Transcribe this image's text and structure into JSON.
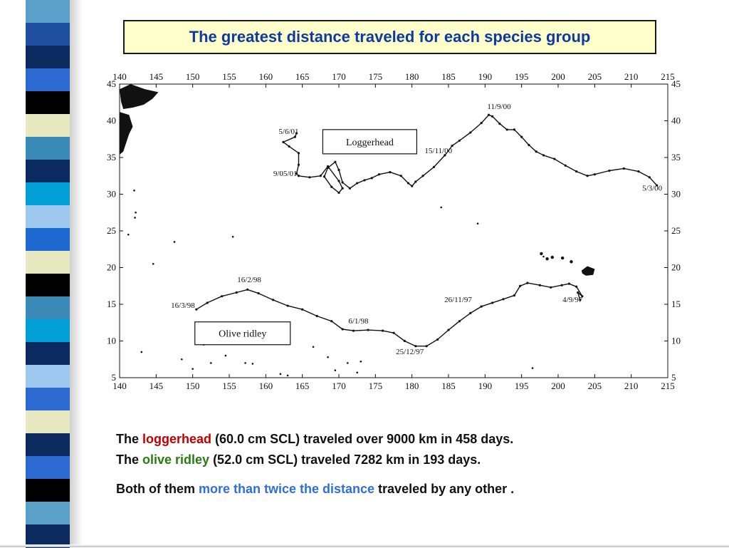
{
  "slide": {
    "title": "The greatest distance traveled for each species group",
    "stripes": [
      "#5aa0c8",
      "#1e4fa0",
      "#0a2a60",
      "#2c6ad2",
      "#000000",
      "#e8e8c0",
      "#3a8ab8",
      "#0a2a60",
      "#00a0d6",
      "#9ec8f0",
      "#1e6ad2",
      "#e8e8c0",
      "#000000",
      "#3a8ab8",
      "#00a0d6",
      "#0a2a60",
      "#9ec8f0",
      "#2c6ad2",
      "#e8e8c0",
      "#0a2a60",
      "#2c6ad2",
      "#000000",
      "#5aa0c8",
      "#0a2a60"
    ],
    "caption": {
      "line1": {
        "before": "The ",
        "highlight": "loggerhead",
        "after": " (60.0 cm SCL) traveled over 9000 km in 458 days."
      },
      "line2": {
        "before": "The ",
        "highlight": "olive ridley",
        "after": " (52.0 cm SCL) traveled 7282 km in 193 days."
      },
      "line3": {
        "before": "Both of them ",
        "highlight": "more than twice the distance",
        "after": " traveled by any other ."
      }
    },
    "colors": {
      "title_text": "#0d3aa0",
      "title_box": "#ffffcc",
      "loggerhead": "#c00000",
      "olive_ridley": "#2a7a12",
      "emphasis": "#2f6fd6"
    }
  },
  "chart_data": {
    "type": "line",
    "xlim": [
      140,
      215
    ],
    "ylim": [
      5,
      45
    ],
    "x_ticks": [
      140,
      145,
      150,
      155,
      160,
      165,
      170,
      175,
      180,
      185,
      190,
      195,
      200,
      205,
      210,
      215
    ],
    "y_ticks": [
      5,
      10,
      15,
      20,
      25,
      30,
      35,
      40,
      45
    ],
    "series": [
      {
        "name": "Loggerhead",
        "color": "#111111",
        "points": [
          [
            213.5,
            31.2
          ],
          [
            212.5,
            32.3
          ],
          [
            211,
            33.1
          ],
          [
            209,
            33.5
          ],
          [
            207,
            33.2
          ],
          [
            205,
            32.7
          ],
          [
            204,
            32.5
          ],
          [
            202.5,
            33.1
          ],
          [
            201,
            33.9
          ],
          [
            199.5,
            34.8
          ],
          [
            198,
            35.3
          ],
          [
            197,
            35.8
          ],
          [
            196,
            36.7
          ],
          [
            195,
            37.8
          ],
          [
            194,
            38.8
          ],
          [
            193,
            38.8
          ],
          [
            192,
            39.6
          ],
          [
            191,
            40.6
          ],
          [
            190.5,
            40.8
          ],
          [
            189.5,
            39.7
          ],
          [
            188,
            38.4
          ],
          [
            186.5,
            37.3
          ],
          [
            185.5,
            36.6
          ],
          [
            184.5,
            35.3
          ],
          [
            183,
            33.7
          ],
          [
            181.5,
            32.5
          ],
          [
            180.5,
            31.7
          ],
          [
            180,
            31.1
          ],
          [
            179.5,
            31.5
          ],
          [
            178.5,
            32.5
          ],
          [
            177,
            33.0
          ],
          [
            175.5,
            32.7
          ],
          [
            174.5,
            32.2
          ],
          [
            173.5,
            31.9
          ],
          [
            172.5,
            31.5
          ],
          [
            171.5,
            30.8
          ],
          [
            170.5,
            31.6
          ],
          [
            170,
            33.3
          ],
          [
            169.5,
            34.4
          ],
          [
            168.5,
            33.6
          ],
          [
            168,
            32.4
          ],
          [
            169,
            31.0
          ],
          [
            170,
            30.2
          ],
          [
            170.5,
            30.8
          ],
          [
            170,
            31.8
          ],
          [
            168.5,
            33.8
          ],
          [
            167.5,
            32.5
          ],
          [
            166,
            32.3
          ],
          [
            164.5,
            32.5
          ],
          [
            164.2,
            32.8
          ],
          [
            164.5,
            34.0
          ],
          [
            164.5,
            35.6
          ],
          [
            163.2,
            36.5
          ],
          [
            162.4,
            37.1
          ],
          [
            164,
            37.8
          ],
          [
            164.2,
            38.3
          ]
        ],
        "labels": [
          {
            "text": "5/6/01",
            "x": 164.5,
            "y": 38.2
          },
          {
            "text": "9/05/01",
            "x": 164.3,
            "y": 32.5
          },
          {
            "text": "15/11/00",
            "x": 185.5,
            "y": 35.6
          },
          {
            "text": "11/9/00",
            "x": 190.3,
            "y": 41.6
          },
          {
            "text": "5/3/00",
            "x": 211.5,
            "y": 30.5
          }
        ]
      },
      {
        "name": "Olive ridley",
        "color": "#111111",
        "points": [
          [
            150.5,
            14.3
          ],
          [
            152,
            15.2
          ],
          [
            154,
            16.1
          ],
          [
            156,
            16.6
          ],
          [
            157.5,
            17.0
          ],
          [
            159,
            16.5
          ],
          [
            161,
            15.6
          ],
          [
            163,
            14.8
          ],
          [
            165,
            14.3
          ],
          [
            167,
            13.4
          ],
          [
            169,
            12.7
          ],
          [
            170.5,
            11.6
          ],
          [
            172,
            11.4
          ],
          [
            174,
            11.5
          ],
          [
            176,
            11.4
          ],
          [
            177.5,
            11.1
          ],
          [
            179,
            10.0
          ],
          [
            180.5,
            9.3
          ],
          [
            182,
            9.3
          ],
          [
            183.5,
            10.2
          ],
          [
            185,
            11.5
          ],
          [
            186.5,
            12.7
          ],
          [
            188,
            13.8
          ],
          [
            189.5,
            14.7
          ],
          [
            191,
            15.2
          ],
          [
            192.5,
            15.7
          ],
          [
            194,
            16.2
          ],
          [
            194.8,
            17.5
          ],
          [
            195.8,
            17.9
          ],
          [
            197.5,
            17.6
          ],
          [
            199,
            17.3
          ],
          [
            200.5,
            17.6
          ],
          [
            201.5,
            17.8
          ],
          [
            202.5,
            17.4
          ],
          [
            203.3,
            16.1
          ],
          [
            202.7,
            16.6
          ],
          [
            203.0,
            15.6
          ]
        ],
        "labels": [
          {
            "text": "16/3/98",
            "x": 150.3,
            "y": 14.5
          },
          {
            "text": "16/2/98",
            "x": 156.1,
            "y": 18.0
          },
          {
            "text": "6/1/98",
            "x": 171.3,
            "y": 12.4
          },
          {
            "text": "26/11/97",
            "x": 188.2,
            "y": 15.3
          },
          {
            "text": "25/12/97",
            "x": 177.8,
            "y": 8.2
          },
          {
            "text": "4/9/97",
            "x": 200.6,
            "y": 15.3
          }
        ]
      }
    ],
    "legend_boxes": [
      {
        "label": "Loggerhead",
        "series": "Loggerhead"
      },
      {
        "label": "Olive ridley",
        "series": "Olive ridley"
      }
    ]
  }
}
